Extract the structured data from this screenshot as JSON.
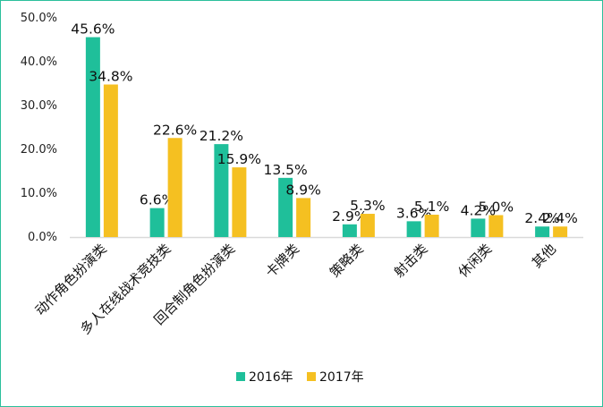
{
  "chart_data": {
    "type": "bar",
    "categories": [
      "动作角色扮演类",
      "多人在线战术竞技类",
      "回合制角色扮演类",
      "卡牌类",
      "策略类",
      "射击类",
      "休闲类",
      "其他"
    ],
    "series": [
      {
        "name": "2016年",
        "values": [
          45.6,
          6.6,
          21.2,
          13.5,
          2.9,
          3.6,
          4.2,
          2.4
        ],
        "labels": [
          "45.6%",
          "6.6%",
          "21.2%",
          "13.5%",
          "2.9%",
          "3.6%",
          "4.2%",
          "2.4%"
        ],
        "color": "#1fbf9a"
      },
      {
        "name": "2017年",
        "values": [
          34.8,
          22.6,
          15.9,
          8.9,
          5.3,
          5.1,
          5.0,
          2.4
        ],
        "labels": [
          "34.8%",
          "22.6%",
          "15.9%",
          "8.9%",
          "5.3%",
          "5.1%",
          "5.0%",
          "2.4%"
        ],
        "color": "#f5c021"
      }
    ],
    "yticks": [
      "0.0%",
      "10.0%",
      "20.0%",
      "30.0%",
      "40.0%",
      "50.0%"
    ],
    "ylim": [
      0,
      50
    ],
    "legend_position": "bottom",
    "grid": false,
    "frame_color": "#2bbf9b"
  }
}
